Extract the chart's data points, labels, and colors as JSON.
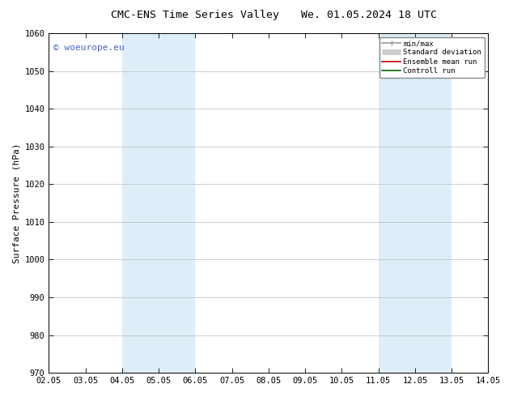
{
  "title_left": "CMC-ENS Time Series Valley",
  "title_right": "We. 01.05.2024 18 UTC",
  "ylabel": "Surface Pressure (hPa)",
  "ylim": [
    970,
    1060
  ],
  "yticks": [
    970,
    980,
    990,
    1000,
    1010,
    1020,
    1030,
    1040,
    1050,
    1060
  ],
  "xtick_labels": [
    "02.05",
    "03.05",
    "04.05",
    "05.05",
    "06.05",
    "07.05",
    "08.05",
    "09.05",
    "10.05",
    "11.05",
    "12.05",
    "13.05",
    "14.05"
  ],
  "xtick_positions": [
    0,
    1,
    2,
    3,
    4,
    5,
    6,
    7,
    8,
    9,
    10,
    11,
    12
  ],
  "xlim": [
    0,
    12
  ],
  "shaded_bands": [
    {
      "x_start": 2,
      "x_end": 4,
      "color": "#ddeef8"
    },
    {
      "x_start": 9,
      "x_end": 11,
      "color": "#ddeef8"
    }
  ],
  "copyright_text": "© woeurope.eu",
  "copyright_color": "#4466cc",
  "legend_entries": [
    {
      "label": "min/max",
      "color": "#999999",
      "linewidth": 1.2
    },
    {
      "label": "Standard deviation",
      "color": "#cccccc",
      "linewidth": 5
    },
    {
      "label": "Ensemble mean run",
      "color": "#cc0000",
      "linewidth": 1.2
    },
    {
      "label": "Controll run",
      "color": "#006600",
      "linewidth": 1.2
    }
  ],
  "background_color": "#ffffff",
  "plot_bg_color": "#ffffff",
  "grid_color": "#bbbbbb",
  "title_fontsize": 9.5,
  "tick_fontsize": 7.5,
  "ylabel_fontsize": 8,
  "copyright_fontsize": 8
}
